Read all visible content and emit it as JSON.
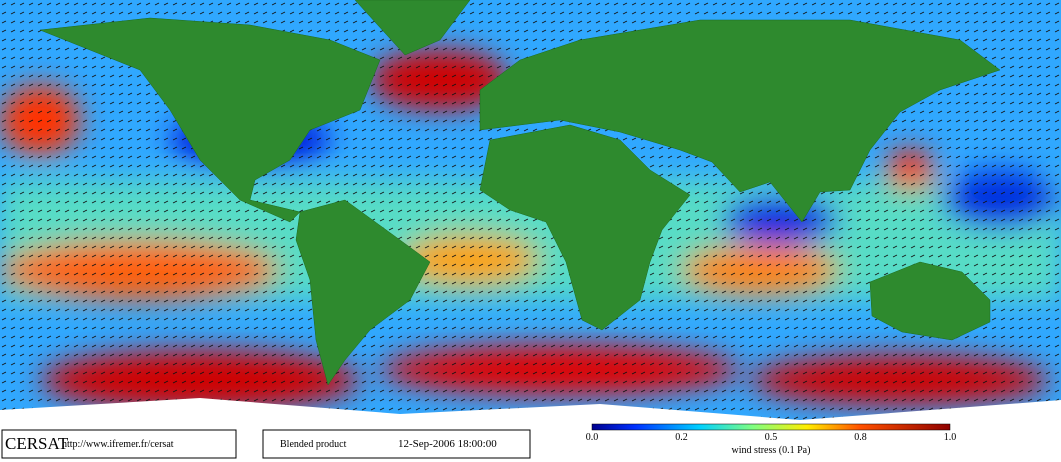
{
  "footer": {
    "logo": "CERSAT",
    "url": "http://www.ifremer.fr/cersat",
    "product": "Blended product",
    "timestamp": "12-Sep-2006 18:00:00"
  },
  "colorbar": {
    "ticks": [
      "0.0",
      "0.2",
      "0.5",
      "0.8",
      "1.0"
    ],
    "label": "wind stress (0.1 Pa)"
  }
}
